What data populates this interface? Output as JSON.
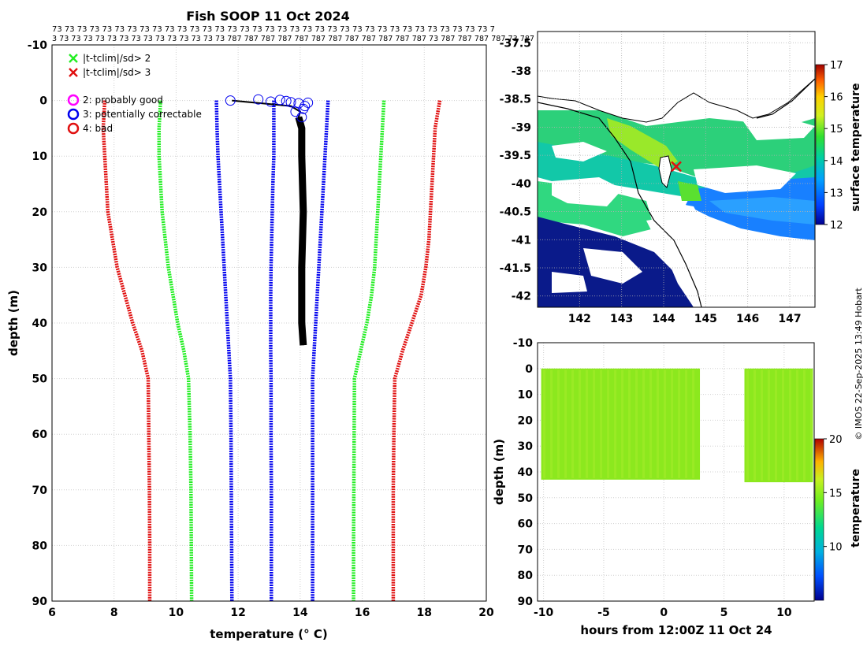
{
  "title": "Fish SOOP 11 Oct 2024",
  "top_codes": {
    "row1": "73 73 73 73 73 73 73 73 73 73 73 73 73 73 73 73 73 73 73 73 73 73 73 73 73 73 73 73 73 73 73 73 73 73 73 7",
    "row2": "3 73 73 73 73 73 73 73 73 73 73 73 73 73 73 787 787 787 787 787 787 787 787 787 787 787 787 73 787 787 787 787 73 787"
  },
  "credit": "© IMOS 22-Sep-2025 13:49 Hobart",
  "colors": {
    "red": "#e01010",
    "green": "#22ee22",
    "blue": "#0000ee",
    "black": "#000000",
    "land": "#ffffff",
    "deep": "#0a1a8a"
  },
  "chart_data": [
    {
      "type": "line",
      "name": "profile",
      "xlabel": "temperature (° C)",
      "ylabel": "depth (m)",
      "xlim": [
        6,
        20
      ],
      "ylim": [
        -10,
        90
      ],
      "xticks": [
        6,
        8,
        10,
        12,
        14,
        16,
        18,
        20
      ],
      "yticks": [
        -10,
        0,
        10,
        20,
        30,
        40,
        50,
        60,
        70,
        80,
        90
      ],
      "grid": true,
      "legend": [
        {
          "label": "|t-tclim|/sd> 2",
          "marker": "x",
          "color": "green"
        },
        {
          "label": "|t-tclim|/sd> 3",
          "marker": "x",
          "color": "red"
        },
        {
          "label": "2: probably good",
          "marker": "o",
          "color": "magenta"
        },
        {
          "label": "3: potentially correctable",
          "marker": "o",
          "color": "blue"
        },
        {
          "label": "4: bad",
          "marker": "o",
          "color": "red"
        }
      ],
      "series": [
        {
          "name": "clim -3sd",
          "color": "red",
          "depth": [
            0,
            5,
            10,
            15,
            20,
            25,
            30,
            35,
            40,
            45,
            50,
            60,
            70,
            80,
            90
          ],
          "temp": [
            7.7,
            7.65,
            7.7,
            7.75,
            7.8,
            7.95,
            8.1,
            8.35,
            8.6,
            8.9,
            9.1,
            9.12,
            9.14,
            9.15,
            9.15
          ]
        },
        {
          "name": "clim -2sd",
          "color": "green",
          "depth": [
            0,
            5,
            10,
            15,
            20,
            25,
            30,
            35,
            40,
            45,
            50,
            60,
            70,
            80,
            90
          ],
          "temp": [
            9.5,
            9.45,
            9.45,
            9.5,
            9.55,
            9.65,
            9.75,
            9.9,
            10.05,
            10.25,
            10.4,
            10.45,
            10.48,
            10.49,
            10.5
          ]
        },
        {
          "name": "clim -1sd",
          "color": "blue",
          "depth": [
            0,
            5,
            10,
            15,
            20,
            25,
            30,
            35,
            40,
            45,
            50,
            60,
            70,
            80,
            90
          ],
          "temp": [
            11.3,
            11.32,
            11.35,
            11.4,
            11.45,
            11.5,
            11.55,
            11.6,
            11.65,
            11.7,
            11.75,
            11.77,
            11.78,
            11.79,
            11.8
          ]
        },
        {
          "name": "clim mean",
          "color": "blue",
          "depth": [
            0,
            5,
            10,
            15,
            20,
            25,
            30,
            35,
            40,
            45,
            50,
            60,
            70,
            80,
            90
          ],
          "temp": [
            13.15,
            13.15,
            13.15,
            13.12,
            13.1,
            13.08,
            13.06,
            13.05,
            13.05,
            13.05,
            13.06,
            13.06,
            13.07,
            13.07,
            13.07
          ]
        },
        {
          "name": "clim +1sd",
          "color": "blue",
          "depth": [
            0,
            5,
            10,
            15,
            20,
            25,
            30,
            35,
            40,
            45,
            50,
            60,
            70,
            80,
            90
          ],
          "temp": [
            14.9,
            14.85,
            14.8,
            14.75,
            14.7,
            14.65,
            14.6,
            14.55,
            14.5,
            14.45,
            14.4,
            14.4,
            14.4,
            14.4,
            14.4
          ]
        },
        {
          "name": "clim +2sd",
          "color": "green",
          "depth": [
            0,
            5,
            10,
            15,
            20,
            25,
            30,
            35,
            40,
            45,
            50,
            60,
            70,
            80,
            90
          ],
          "temp": [
            16.7,
            16.65,
            16.6,
            16.55,
            16.5,
            16.45,
            16.4,
            16.3,
            16.15,
            15.95,
            15.75,
            15.74,
            15.73,
            15.72,
            15.72
          ]
        },
        {
          "name": "clim +3sd",
          "color": "red",
          "depth": [
            0,
            5,
            10,
            15,
            20,
            25,
            30,
            35,
            40,
            45,
            50,
            60,
            70,
            80,
            90
          ],
          "temp": [
            18.5,
            18.35,
            18.3,
            18.25,
            18.2,
            18.15,
            18.05,
            17.9,
            17.6,
            17.3,
            17.05,
            17.02,
            17.0,
            17.0,
            17.0
          ]
        },
        {
          "name": "observed",
          "color": "black",
          "depth": [
            0,
            1,
            2,
            3,
            5,
            10,
            20,
            30,
            40,
            44
          ],
          "temp": [
            11.8,
            13.7,
            14.0,
            13.95,
            14.05,
            14.05,
            14.1,
            14.05,
            14.05,
            14.1
          ]
        }
      ],
      "flag3_points": {
        "depth": [
          0,
          -0.2,
          0.2,
          -0.1,
          0.3,
          0.5,
          1.0,
          1.5,
          2.0,
          3.0,
          0.1,
          0.4
        ],
        "temp": [
          11.75,
          12.65,
          13.05,
          13.35,
          13.7,
          13.95,
          14.15,
          14.1,
          13.85,
          14.05,
          13.55,
          14.25
        ]
      }
    },
    {
      "type": "heatmap",
      "name": "map",
      "colorbar_label": "surface temperature",
      "clim": [
        12,
        17
      ],
      "colorbar_ticks": [
        12,
        13,
        14,
        15,
        16,
        17
      ],
      "xlim": [
        141,
        147.6
      ],
      "ylim": [
        -42.2,
        -37.3
      ],
      "xticks": [
        142,
        143,
        144,
        145,
        146,
        147
      ],
      "yticks": [
        -37.5,
        -38,
        -38.5,
        -39,
        -39.5,
        -40,
        -40.5,
        -41,
        -41.5,
        -42
      ],
      "ytick_labels": [
        "-37.5",
        "-38",
        "-38.5",
        "-39",
        "-39.5",
        "-40",
        "-40.5",
        "-41",
        "-41.5",
        "-42"
      ],
      "track_position": [
        144.3,
        -39.7
      ]
    },
    {
      "type": "scatter",
      "name": "time-depth",
      "xlabel": "hours from 12:00Z 11 Oct 24",
      "ylabel": "depth (m)",
      "colorbar_label": "temperature",
      "clim": [
        5,
        20
      ],
      "colorbar_ticks": [
        10,
        15,
        20
      ],
      "xlim": [
        -10.5,
        12.5
      ],
      "ylim": [
        -10,
        90
      ],
      "xticks": [
        -10,
        -5,
        0,
        5,
        10
      ],
      "yticks": [
        -10,
        0,
        10,
        20,
        30,
        40,
        50,
        60,
        70,
        80,
        90
      ],
      "blocks": [
        {
          "hours": [
            -10.2,
            3.0
          ],
          "depth": [
            0,
            43
          ]
        },
        {
          "hours": [
            6.7,
            12.4
          ],
          "depth": [
            0,
            44
          ]
        }
      ]
    }
  ]
}
